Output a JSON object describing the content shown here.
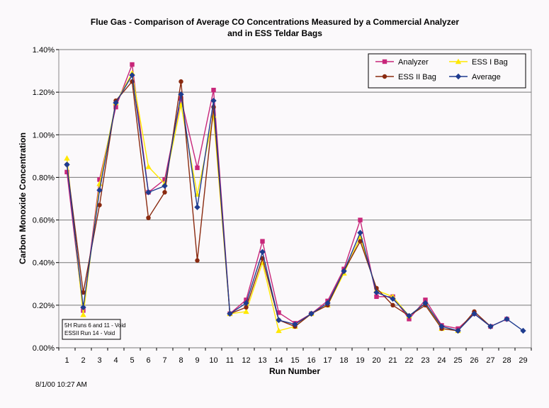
{
  "chart_data": {
    "type": "line",
    "title_lines": [
      "Flue Gas - Comparison of Average CO Concentrations Measured by a Commercial Analyzer",
      "and in ESS Teldar Bags"
    ],
    "xlabel": "Run Number",
    "ylabel": "Carbon Monoxide Concentration",
    "x": [
      1,
      2,
      3,
      4,
      5,
      6,
      7,
      8,
      9,
      10,
      11,
      12,
      13,
      14,
      15,
      16,
      17,
      18,
      19,
      20,
      21,
      22,
      23,
      24,
      25,
      26,
      27,
      28,
      29
    ],
    "ylim": [
      0,
      0.014
    ],
    "yticks": [
      0,
      0.002,
      0.004,
      0.006,
      0.008,
      0.01,
      0.012,
      0.014
    ],
    "ytick_labels": [
      "0.00%",
      "0.20%",
      "0.40%",
      "0.60%",
      "0.80%",
      "1.00%",
      "1.20%",
      "1.40%"
    ],
    "grid": true,
    "legend_position": "top-right",
    "series": [
      {
        "name": "Analyzer",
        "color": "#c8267a",
        "marker": "square",
        "values": [
          0.00825,
          0.00175,
          0.0079,
          0.0113,
          0.0133,
          0.0073,
          0.0079,
          0.0117,
          0.00845,
          0.0121,
          0.0016,
          0.00225,
          0.005,
          0.00165,
          0.00115,
          0.0016,
          0.0022,
          0.0037,
          0.006,
          0.0024,
          0.0024,
          0.00135,
          0.00225,
          0.00105,
          0.0009,
          0.0016,
          0.001,
          0.00135,
          null
        ]
      },
      {
        "name": "ESS I Bag",
        "color": "#ffe800",
        "marker": "triangle",
        "values": [
          0.0089,
          0.00155,
          0.0077,
          0.0115,
          0.0129,
          0.0085,
          0.0077,
          0.0114,
          0.0072,
          0.0109,
          0.0016,
          0.0017,
          0.004,
          0.0008,
          0.001,
          0.0016,
          0.002,
          0.0035,
          0.0052,
          0.0027,
          0.0024,
          0.0015,
          0.0021,
          0.0009,
          0.0008,
          null,
          null,
          null,
          null
        ]
      },
      {
        "name": "ESS II Bag",
        "color": "#8a2a10",
        "marker": "circle",
        "values": [
          0.0086,
          0.0026,
          0.0067,
          0.0116,
          0.0125,
          0.0061,
          0.0073,
          0.0125,
          0.0041,
          0.0113,
          0.0016,
          0.0019,
          0.0042,
          0.0013,
          0.001,
          0.0016,
          0.002,
          0.0036,
          0.005,
          0.0028,
          0.002,
          0.0015,
          0.002,
          0.0009,
          0.0008,
          0.0017,
          0.001,
          null,
          null
        ]
      },
      {
        "name": "Average",
        "color": "#1f3c8f",
        "marker": "diamond",
        "values": [
          0.0086,
          0.0019,
          0.0074,
          0.0115,
          0.0128,
          0.0073,
          0.0076,
          0.0119,
          0.0066,
          0.0116,
          0.0016,
          0.0021,
          0.0045,
          0.0013,
          0.0011,
          0.0016,
          0.0021,
          0.0036,
          0.0054,
          0.0026,
          0.0023,
          0.0015,
          0.0021,
          0.001,
          0.0008,
          0.0016,
          0.001,
          0.00135,
          0.0008
        ]
      }
    ],
    "annotation_lines": [
      "5H Runs 6 and 11 - Void",
      "ESSII Run 14 - Void"
    ],
    "timestamp": "8/1/00 10:27 AM"
  }
}
